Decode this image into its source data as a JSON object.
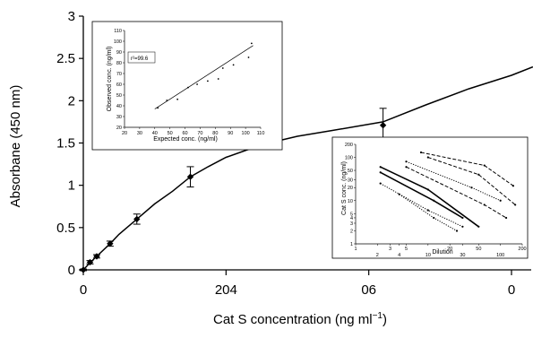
{
  "chart_data": [
    {
      "type": "line",
      "role": "main",
      "xlabel_main": "Cat S concentration (ng ml",
      "xlabel_sup": "−1",
      "xlabel_close": ")",
      "ylabel": "Absorbane (450 nm)",
      "x_tick_labels": [
        "0",
        "204",
        "06",
        "0"
      ],
      "y_tick_labels": [
        "0",
        "0.5",
        "1",
        "1.5",
        "2",
        "2.5",
        "3"
      ],
      "xlim": [
        0,
        60
      ],
      "ylim": [
        0,
        3
      ],
      "x_ticks": [
        0,
        20,
        40,
        60
      ],
      "y_ticks": [
        0,
        0.5,
        1,
        1.5,
        2,
        2.5,
        3
      ],
      "points": [
        {
          "x": 0,
          "y": 0.0,
          "err": 0.01
        },
        {
          "x": 0.94,
          "y": 0.09,
          "err": 0.02
        },
        {
          "x": 1.88,
          "y": 0.16,
          "err": 0.02
        },
        {
          "x": 3.75,
          "y": 0.31,
          "err": 0.03
        },
        {
          "x": 7.5,
          "y": 0.6,
          "err": 0.06
        },
        {
          "x": 15,
          "y": 1.1,
          "err": 0.12
        },
        {
          "x": 42,
          "y": 1.71,
          "err": 0.2
        }
      ],
      "fit_curve": [
        [
          0,
          0
        ],
        [
          1,
          0.09
        ],
        [
          2,
          0.17
        ],
        [
          3.75,
          0.31
        ],
        [
          5,
          0.42
        ],
        [
          7.5,
          0.6
        ],
        [
          10,
          0.78
        ],
        [
          12.5,
          0.93
        ],
        [
          15,
          1.1
        ],
        [
          17.5,
          1.22
        ],
        [
          20,
          1.33
        ],
        [
          25,
          1.48
        ],
        [
          30,
          1.58
        ],
        [
          35,
          1.65
        ],
        [
          42,
          1.75
        ],
        [
          48,
          1.95
        ],
        [
          54,
          2.14
        ],
        [
          60,
          2.3
        ],
        [
          63,
          2.4
        ]
      ]
    },
    {
      "type": "scatter",
      "role": "inset-linearity",
      "xlabel": "Expected conc. (ng/ml)",
      "ylabel": "Observed conc. (ng/ml)",
      "legend": "r²=99.6",
      "x_tick_labels": [
        "20",
        "30",
        "40",
        "50",
        "60",
        "70",
        "80",
        "90",
        "100",
        "110"
      ],
      "y_tick_labels": [
        "20",
        "30",
        "40",
        "50",
        "60",
        "70",
        "80",
        "90",
        "100",
        "110"
      ],
      "xlim": [
        20,
        110
      ],
      "ylim": [
        20,
        110
      ],
      "points": [
        {
          "x": 42,
          "y": 38
        },
        {
          "x": 48,
          "y": 45
        },
        {
          "x": 55,
          "y": 46
        },
        {
          "x": 62,
          "y": 57
        },
        {
          "x": 68,
          "y": 60
        },
        {
          "x": 75,
          "y": 63
        },
        {
          "x": 82,
          "y": 65
        },
        {
          "x": 85,
          "y": 75
        },
        {
          "x": 92,
          "y": 78
        },
        {
          "x": 102,
          "y": 85
        },
        {
          "x": 104,
          "y": 98
        }
      ],
      "fit_line": [
        [
          40,
          37
        ],
        [
          105,
          96
        ]
      ]
    },
    {
      "type": "line",
      "role": "inset-dilution",
      "xlabel": "Dilution",
      "ylabel": "Cat S conc. (ng/ml)",
      "x_tick_labels": [
        "1",
        "2",
        "3",
        "4",
        "5",
        "10",
        "20",
        "30",
        "50",
        "100",
        "200"
      ],
      "y_tick_labels": [
        "200",
        "100",
        "50",
        "30",
        "20",
        "10",
        "5",
        "4",
        "3",
        "2",
        "1"
      ],
      "xlim": [
        1,
        200
      ],
      "ylim": [
        1,
        200
      ],
      "x_scale": "log",
      "y_scale": "log",
      "series": [
        {
          "style": "dashed",
          "points": [
            [
              8,
              130
            ],
            [
              60,
              65
            ],
            [
              150,
              22
            ]
          ]
        },
        {
          "style": "dashed",
          "points": [
            [
              10,
              100
            ],
            [
              50,
              40
            ],
            [
              160,
              8
            ]
          ]
        },
        {
          "style": "dotted",
          "points": [
            [
              5,
              80
            ],
            [
              40,
              20
            ],
            [
              100,
              10
            ]
          ]
        },
        {
          "style": "dashed",
          "points": [
            [
              5,
              60
            ],
            [
              60,
              8
            ],
            [
              120,
              4
            ]
          ]
        },
        {
          "style": "solid",
          "points": [
            [
              2.2,
              60
            ],
            [
              10,
              18
            ],
            [
              50,
              2.5
            ]
          ]
        },
        {
          "style": "solid",
          "points": [
            [
              2.2,
              45
            ],
            [
              12,
              10
            ],
            [
              30,
              4
            ]
          ]
        },
        {
          "style": "dotted",
          "points": [
            [
              2.2,
              25
            ],
            [
              10,
              6
            ],
            [
              30,
              2.5
            ]
          ]
        },
        {
          "style": "dotted",
          "points": [
            [
              4,
              14
            ],
            [
              12,
              4
            ],
            [
              25,
              2
            ]
          ]
        }
      ]
    }
  ]
}
